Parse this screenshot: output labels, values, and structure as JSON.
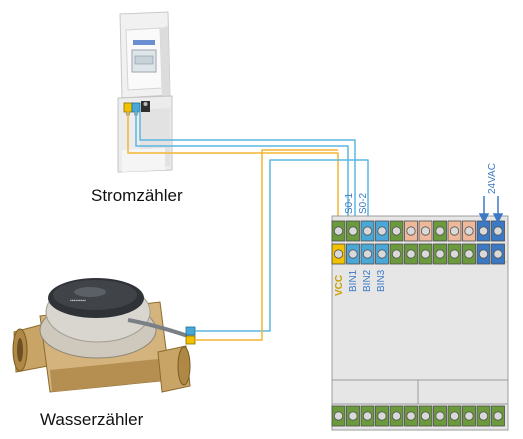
{
  "labels": {
    "electricity_meter": "Stromzähler",
    "water_meter": "Wasserzähler",
    "so1": "S0-1",
    "so2": "S0-2",
    "supply": "24VAC",
    "vcc": "VCC",
    "bin1": "BIN1",
    "bin2": "BIN2",
    "bin3": "BIN3"
  },
  "colors": {
    "wire_blue": "#5bb8e0",
    "wire_yellow": "#f2b632",
    "terminal_green": "#6a9a3c",
    "terminal_blue": "#3c79c4",
    "terminal_orange": "#f0b89a",
    "terminal_yellow": "#f2c200",
    "terminal_cyan": "#4aa8d8",
    "housing_grey": "#e6e6e6",
    "label_blue": "#3c79c4",
    "label_yellow": "#c8a000"
  },
  "icons": {
    "electricity_meter": "din-rail-energy-meter-icon",
    "water_meter": "brass-water-meter-icon"
  }
}
